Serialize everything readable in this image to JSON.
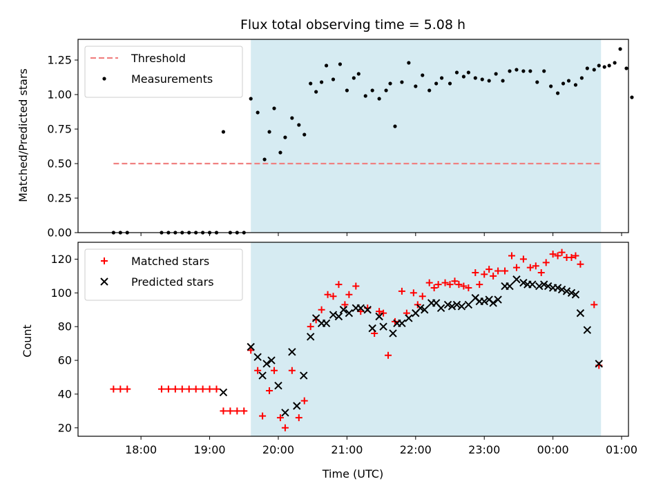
{
  "chart_data": [
    {
      "type": "scatter",
      "title": "Flux total observing time = 5.08 h",
      "xlabel": "",
      "ylabel": "Matched/Predicted stars",
      "ylim": [
        0,
        1.4
      ],
      "yticks": [
        "0.00",
        "0.25",
        "0.50",
        "0.75",
        "1.00",
        "1.25"
      ],
      "ytick_values": [
        0,
        0.25,
        0.5,
        0.75,
        1.0,
        1.25
      ],
      "xlim": [
        17.0833,
        25.1
      ],
      "xticks_hours": [
        18,
        19,
        20,
        21,
        22,
        23,
        24,
        25
      ],
      "shaded_span": [
        19.6,
        24.7
      ],
      "legend_position": "upper-left",
      "series": [
        {
          "name": "Threshold",
          "style": "dashed-line",
          "color": "#f08080",
          "x": [
            17.6,
            24.7
          ],
          "y": [
            0.5,
            0.5
          ]
        },
        {
          "name": "Measurements",
          "style": "dot",
          "color": "#000000",
          "points": [
            [
              17.6,
              0
            ],
            [
              17.7,
              0
            ],
            [
              17.8,
              0
            ],
            [
              18.3,
              0
            ],
            [
              18.4,
              0
            ],
            [
              18.5,
              0
            ],
            [
              18.6,
              0
            ],
            [
              18.7,
              0
            ],
            [
              18.8,
              0
            ],
            [
              18.9,
              0
            ],
            [
              19.0,
              0
            ],
            [
              19.1,
              0
            ],
            [
              19.2,
              0.73
            ],
            [
              19.3,
              0
            ],
            [
              19.4,
              0
            ],
            [
              19.5,
              0
            ],
            [
              19.6,
              0.97
            ],
            [
              19.7,
              0.87
            ],
            [
              19.8,
              0.53
            ],
            [
              19.87,
              0.73
            ],
            [
              19.94,
              0.9
            ],
            [
              20.03,
              0.58
            ],
            [
              20.1,
              0.69
            ],
            [
              20.2,
              0.83
            ],
            [
              20.3,
              0.78
            ],
            [
              20.38,
              0.71
            ],
            [
              20.47,
              1.08
            ],
            [
              20.55,
              1.02
            ],
            [
              20.63,
              1.09
            ],
            [
              20.7,
              1.21
            ],
            [
              20.8,
              1.11
            ],
            [
              20.9,
              1.22
            ],
            [
              21.0,
              1.03
            ],
            [
              21.1,
              1.12
            ],
            [
              21.17,
              1.15
            ],
            [
              21.27,
              0.99
            ],
            [
              21.37,
              1.03
            ],
            [
              21.47,
              0.97
            ],
            [
              21.57,
              1.03
            ],
            [
              21.63,
              1.08
            ],
            [
              21.7,
              0.77
            ],
            [
              21.8,
              1.09
            ],
            [
              21.9,
              1.23
            ],
            [
              22.0,
              1.06
            ],
            [
              22.1,
              1.14
            ],
            [
              22.2,
              1.03
            ],
            [
              22.3,
              1.08
            ],
            [
              22.38,
              1.12
            ],
            [
              22.5,
              1.08
            ],
            [
              22.6,
              1.16
            ],
            [
              22.7,
              1.13
            ],
            [
              22.77,
              1.16
            ],
            [
              22.87,
              1.12
            ],
            [
              22.97,
              1.11
            ],
            [
              23.07,
              1.1
            ],
            [
              23.17,
              1.15
            ],
            [
              23.27,
              1.1
            ],
            [
              23.37,
              1.17
            ],
            [
              23.47,
              1.18
            ],
            [
              23.57,
              1.17
            ],
            [
              23.67,
              1.17
            ],
            [
              23.77,
              1.09
            ],
            [
              23.87,
              1.17
            ],
            [
              23.97,
              1.06
            ],
            [
              24.07,
              1.01
            ],
            [
              24.15,
              1.08
            ],
            [
              24.23,
              1.1
            ],
            [
              24.33,
              1.07
            ],
            [
              24.42,
              1.12
            ],
            [
              24.5,
              1.19
            ],
            [
              24.6,
              1.18
            ],
            [
              24.67,
              1.21
            ],
            [
              24.75,
              1.2
            ],
            [
              24.82,
              1.21
            ],
            [
              24.9,
              1.23
            ],
            [
              24.98,
              1.33
            ],
            [
              25.07,
              1.19
            ],
            [
              25.15,
              0.98
            ]
          ]
        }
      ]
    },
    {
      "type": "scatter",
      "title": "",
      "xlabel": "Time (UTC)",
      "ylabel": "Count",
      "ylim": [
        15,
        130
      ],
      "yticks": [
        "20",
        "40",
        "60",
        "80",
        "100",
        "120"
      ],
      "ytick_values": [
        20,
        40,
        60,
        80,
        100,
        120
      ],
      "xticks": [
        "18:00",
        "19:00",
        "20:00",
        "21:00",
        "22:00",
        "23:00",
        "00:00",
        "01:00"
      ],
      "xticks_hours": [
        18,
        19,
        20,
        21,
        22,
        23,
        24,
        25
      ],
      "xlim": [
        17.0833,
        25.1
      ],
      "shaded_span": [
        19.6,
        24.7
      ],
      "legend_position": "upper-left",
      "series": [
        {
          "name": "Matched stars",
          "style": "plus",
          "color": "#ff0000",
          "points": [
            [
              17.6,
              43
            ],
            [
              17.7,
              43
            ],
            [
              17.8,
              43
            ],
            [
              18.3,
              43
            ],
            [
              18.4,
              43
            ],
            [
              18.5,
              43
            ],
            [
              18.6,
              43
            ],
            [
              18.7,
              43
            ],
            [
              18.8,
              43
            ],
            [
              18.9,
              43
            ],
            [
              19.0,
              43
            ],
            [
              19.1,
              43
            ],
            [
              19.2,
              30
            ],
            [
              19.3,
              30
            ],
            [
              19.4,
              30
            ],
            [
              19.5,
              30
            ],
            [
              19.6,
              66
            ],
            [
              19.7,
              54
            ],
            [
              19.77,
              27
            ],
            [
              19.87,
              42
            ],
            [
              19.94,
              54
            ],
            [
              20.03,
              26
            ],
            [
              20.1,
              20
            ],
            [
              20.2,
              54
            ],
            [
              20.3,
              26
            ],
            [
              20.38,
              36
            ],
            [
              20.47,
              80
            ],
            [
              20.55,
              84
            ],
            [
              20.63,
              90
            ],
            [
              20.72,
              99
            ],
            [
              20.8,
              98
            ],
            [
              20.88,
              105
            ],
            [
              20.97,
              93
            ],
            [
              21.03,
              99
            ],
            [
              21.13,
              104
            ],
            [
              21.2,
              89
            ],
            [
              21.3,
              91
            ],
            [
              21.4,
              76
            ],
            [
              21.47,
              89
            ],
            [
              21.53,
              88
            ],
            [
              21.6,
              63
            ],
            [
              21.7,
              83
            ],
            [
              21.8,
              101
            ],
            [
              21.87,
              88
            ],
            [
              21.97,
              100
            ],
            [
              22.03,
              93
            ],
            [
              22.1,
              98
            ],
            [
              22.2,
              106
            ],
            [
              22.27,
              103
            ],
            [
              22.33,
              105
            ],
            [
              22.43,
              106
            ],
            [
              22.5,
              105
            ],
            [
              22.57,
              107
            ],
            [
              22.63,
              105
            ],
            [
              22.7,
              104
            ],
            [
              22.77,
              103
            ],
            [
              22.87,
              112
            ],
            [
              22.93,
              105
            ],
            [
              23.0,
              111
            ],
            [
              23.07,
              114
            ],
            [
              23.13,
              110
            ],
            [
              23.2,
              113
            ],
            [
              23.3,
              113
            ],
            [
              23.4,
              122
            ],
            [
              23.47,
              115
            ],
            [
              23.57,
              120
            ],
            [
              23.67,
              115
            ],
            [
              23.75,
              116
            ],
            [
              23.83,
              112
            ],
            [
              23.9,
              118
            ],
            [
              24.0,
              123
            ],
            [
              24.07,
              122
            ],
            [
              24.13,
              124
            ],
            [
              24.2,
              121
            ],
            [
              24.27,
              121
            ],
            [
              24.33,
              122
            ],
            [
              24.4,
              117
            ],
            [
              24.6,
              93
            ],
            [
              24.67,
              57
            ]
          ]
        },
        {
          "name": "Predicted stars",
          "style": "x",
          "color": "#000000",
          "points": [
            [
              19.2,
              41
            ],
            [
              19.6,
              68
            ],
            [
              19.7,
              62
            ],
            [
              19.77,
              51
            ],
            [
              19.83,
              58
            ],
            [
              19.9,
              60
            ],
            [
              20.0,
              45
            ],
            [
              20.1,
              29
            ],
            [
              20.2,
              65
            ],
            [
              20.27,
              33
            ],
            [
              20.37,
              51
            ],
            [
              20.47,
              74
            ],
            [
              20.55,
              85
            ],
            [
              20.63,
              82
            ],
            [
              20.7,
              82
            ],
            [
              20.8,
              87
            ],
            [
              20.88,
              86
            ],
            [
              20.95,
              90
            ],
            [
              21.03,
              88
            ],
            [
              21.13,
              91
            ],
            [
              21.2,
              91
            ],
            [
              21.3,
              90
            ],
            [
              21.37,
              79
            ],
            [
              21.47,
              86
            ],
            [
              21.53,
              80
            ],
            [
              21.67,
              76
            ],
            [
              21.73,
              82
            ],
            [
              21.8,
              82
            ],
            [
              21.9,
              85
            ],
            [
              22.0,
              88
            ],
            [
              22.07,
              91
            ],
            [
              22.13,
              90
            ],
            [
              22.23,
              94
            ],
            [
              22.3,
              94
            ],
            [
              22.37,
              91
            ],
            [
              22.47,
              93
            ],
            [
              22.53,
              92
            ],
            [
              22.6,
              93
            ],
            [
              22.67,
              92
            ],
            [
              22.77,
              93
            ],
            [
              22.87,
              97
            ],
            [
              22.93,
              95
            ],
            [
              23.0,
              95
            ],
            [
              23.07,
              96
            ],
            [
              23.13,
              94
            ],
            [
              23.2,
              96
            ],
            [
              23.3,
              104
            ],
            [
              23.37,
              104
            ],
            [
              23.47,
              108
            ],
            [
              23.57,
              106
            ],
            [
              23.63,
              105
            ],
            [
              23.7,
              105
            ],
            [
              23.8,
              104
            ],
            [
              23.87,
              105
            ],
            [
              23.93,
              104
            ],
            [
              24.0,
              103
            ],
            [
              24.07,
              103
            ],
            [
              24.13,
              102
            ],
            [
              24.2,
              101
            ],
            [
              24.27,
              100
            ],
            [
              24.33,
              99
            ],
            [
              24.4,
              88
            ],
            [
              24.5,
              78
            ],
            [
              24.67,
              58
            ]
          ]
        }
      ]
    }
  ]
}
